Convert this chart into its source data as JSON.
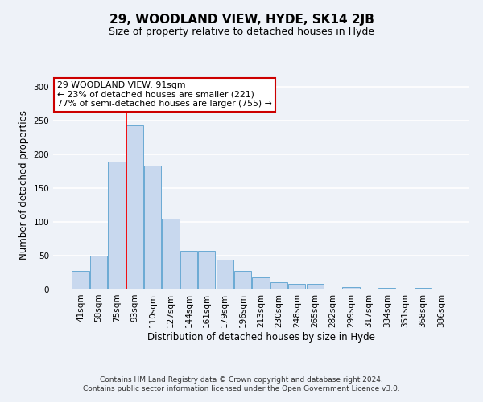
{
  "title": "29, WOODLAND VIEW, HYDE, SK14 2JB",
  "subtitle": "Size of property relative to detached houses in Hyde",
  "xlabel": "Distribution of detached houses by size in Hyde",
  "ylabel": "Number of detached properties",
  "bar_labels": [
    "41sqm",
    "58sqm",
    "75sqm",
    "93sqm",
    "110sqm",
    "127sqm",
    "144sqm",
    "161sqm",
    "179sqm",
    "196sqm",
    "213sqm",
    "230sqm",
    "248sqm",
    "265sqm",
    "282sqm",
    "299sqm",
    "317sqm",
    "334sqm",
    "351sqm",
    "368sqm",
    "386sqm"
  ],
  "bar_values": [
    28,
    50,
    189,
    243,
    184,
    105,
    57,
    57,
    44,
    27,
    18,
    11,
    8,
    8,
    0,
    3,
    0,
    2,
    0,
    2,
    0
  ],
  "bar_color": "#c8d8ee",
  "bar_edge_color": "#6aaad4",
  "ylim": [
    0,
    310
  ],
  "yticks": [
    0,
    50,
    100,
    150,
    200,
    250,
    300
  ],
  "red_line_index": 3,
  "annotation_title": "29 WOODLAND VIEW: 91sqm",
  "annotation_line1": "← 23% of detached houses are smaller (221)",
  "annotation_line2": "77% of semi-detached houses are larger (755) →",
  "annotation_box_color": "#ffffff",
  "annotation_box_edge": "#cc0000",
  "footer1": "Contains HM Land Registry data © Crown copyright and database right 2024.",
  "footer2": "Contains public sector information licensed under the Open Government Licence v3.0.",
  "background_color": "#eef2f8",
  "grid_color": "#ffffff",
  "title_fontsize": 11,
  "subtitle_fontsize": 9,
  "axis_label_fontsize": 8.5,
  "tick_fontsize": 7.5,
  "footer_fontsize": 6.5
}
